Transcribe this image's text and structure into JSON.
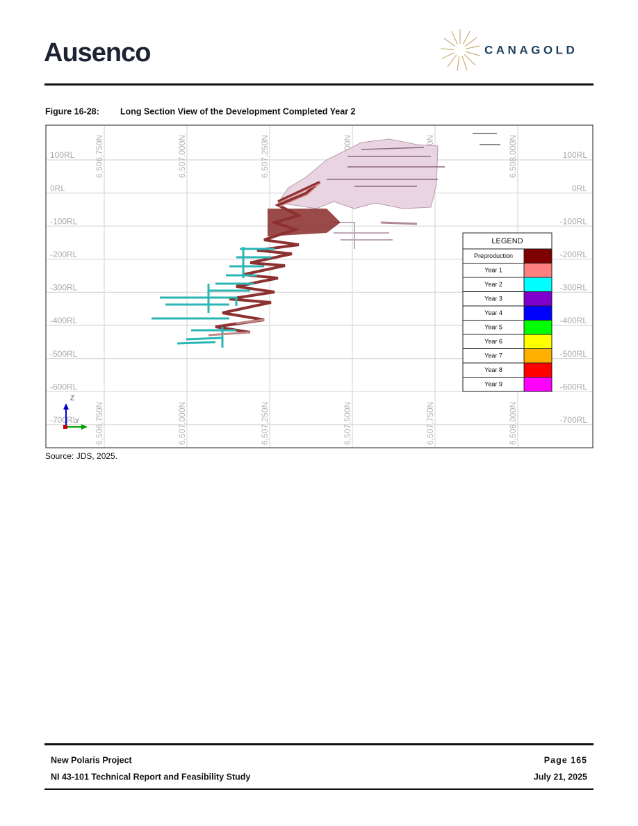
{
  "header": {
    "left_logo": "Ausenco",
    "right_logo": "CANAGOLD"
  },
  "figure": {
    "number": "Figure 16-28:",
    "title": "Long Section View of the Development Completed Year 2",
    "rl_labels": [
      "100RL",
      "0RL",
      "-100RL",
      "-200RL",
      "-300RL",
      "-400RL",
      "-500RL",
      "-600RL",
      "-700RL"
    ],
    "northing_labels": [
      "6,506,750N",
      "6,507,000N",
      "6,507,250N",
      "6,507,500N",
      "6,507,750N",
      "6,508,000N"
    ],
    "axis_labels": [
      "Z",
      "Y"
    ],
    "legend": {
      "title": "LEGEND",
      "items": [
        {
          "label": "Preproduction",
          "color": "#7f0000"
        },
        {
          "label": "Year 1",
          "color": "#ff8080"
        },
        {
          "label": "Year 2",
          "color": "#00ffff"
        },
        {
          "label": "Year 3",
          "color": "#7f00cc"
        },
        {
          "label": "Year 4",
          "color": "#0000ff"
        },
        {
          "label": "Year 5",
          "color": "#00ff00"
        },
        {
          "label": "Year 6",
          "color": "#ffff00"
        },
        {
          "label": "Year 7",
          "color": "#ffb000"
        },
        {
          "label": "Year 8",
          "color": "#ff0000"
        },
        {
          "label": "Year 9",
          "color": "#ff00ff"
        }
      ]
    },
    "source": "Source: JDS, 2025."
  },
  "footer": {
    "project": "New Polaris Project",
    "report": "NI 43-101 Technical Report and Feasibility Study",
    "page": "Page 165",
    "date": "July 21, 2025"
  }
}
